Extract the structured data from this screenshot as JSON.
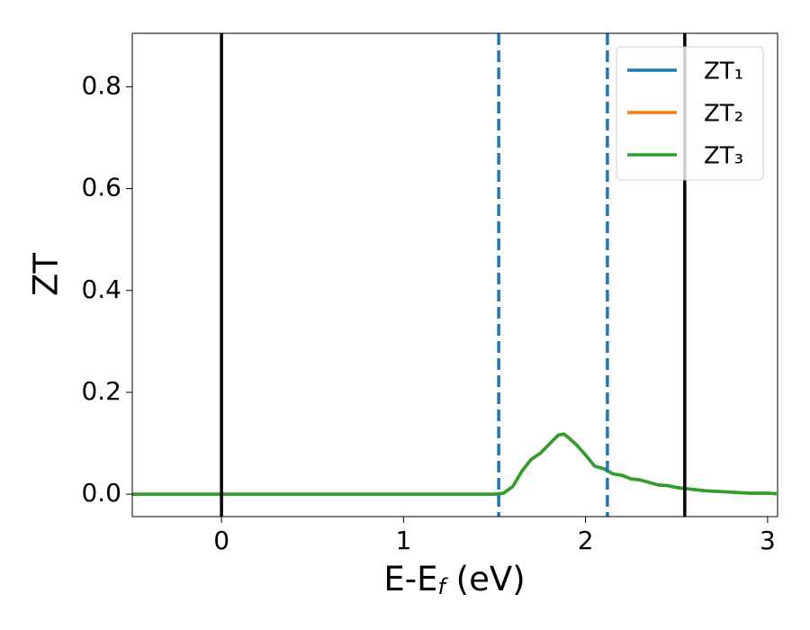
{
  "chart_data": {
    "type": "line",
    "ylabel": "ZT",
    "xlabel": [
      "E-E",
      "f",
      " (eV)"
    ],
    "x": [
      -0.49,
      0,
      0.5,
      1.0,
      1.5,
      1.55,
      1.6,
      1.65,
      1.7,
      1.75,
      1.8,
      1.85,
      1.88,
      1.9,
      1.95,
      2.0,
      2.05,
      2.1,
      2.15,
      2.2,
      2.25,
      2.3,
      2.35,
      2.4,
      2.45,
      2.5,
      2.55,
      2.6,
      2.65,
      2.7,
      2.75,
      2.8,
      2.85,
      2.9,
      2.95,
      3.0,
      3.05
    ],
    "series": [
      {
        "name": "ZT₁",
        "color": "#1f77b4",
        "values": [
          0,
          0,
          0,
          0,
          0,
          0.002,
          0.015,
          0.045,
          0.068,
          0.08,
          0.098,
          0.116,
          0.118,
          0.113,
          0.097,
          0.077,
          0.055,
          0.05,
          0.04,
          0.037,
          0.03,
          0.028,
          0.023,
          0.018,
          0.017,
          0.013,
          0.011,
          0.009,
          0.007,
          0.006,
          0.005,
          0.004,
          0.003,
          0.002,
          0.002,
          0.002,
          0.001
        ]
      },
      {
        "name": "ZT₂",
        "color": "#ff7f0e",
        "values": [
          0,
          0,
          0,
          0,
          0,
          0.002,
          0.015,
          0.045,
          0.068,
          0.08,
          0.098,
          0.116,
          0.118,
          0.113,
          0.097,
          0.077,
          0.055,
          0.05,
          0.04,
          0.037,
          0.03,
          0.028,
          0.023,
          0.018,
          0.017,
          0.013,
          0.011,
          0.009,
          0.007,
          0.006,
          0.005,
          0.004,
          0.003,
          0.002,
          0.002,
          0.002,
          0.001
        ]
      },
      {
        "name": "ZT₃",
        "color": "#2ca02c",
        "values": [
          0,
          0,
          0,
          0,
          0,
          0.002,
          0.015,
          0.045,
          0.068,
          0.08,
          0.098,
          0.116,
          0.118,
          0.113,
          0.097,
          0.077,
          0.055,
          0.05,
          0.04,
          0.037,
          0.03,
          0.028,
          0.023,
          0.018,
          0.017,
          0.013,
          0.011,
          0.009,
          0.007,
          0.006,
          0.005,
          0.004,
          0.003,
          0.002,
          0.002,
          0.002,
          0.001
        ]
      }
    ],
    "vlines": [
      {
        "x": 0,
        "color": "#000000",
        "style": "solid"
      },
      {
        "x": 2.545,
        "color": "#000000",
        "style": "solid"
      },
      {
        "x": 1.523,
        "color": "#1f77b4",
        "style": "dashed"
      },
      {
        "x": 2.12,
        "color": "#1f77b4",
        "style": "dashed"
      }
    ],
    "xlim": [
      -0.49,
      3.055
    ],
    "xticks": [
      0,
      1,
      2,
      3
    ],
    "ylim": [
      -0.044,
      0.905
    ],
    "yticks": [
      {
        "value": 0,
        "label": "0.0"
      },
      {
        "value": 0.2,
        "label": "0.2"
      },
      {
        "value": 0.4,
        "label": "0.4"
      },
      {
        "value": 0.6,
        "label": "0.6"
      },
      {
        "value": 0.8,
        "label": "0.8"
      }
    ],
    "legend": "upper right",
    "grid": false
  }
}
